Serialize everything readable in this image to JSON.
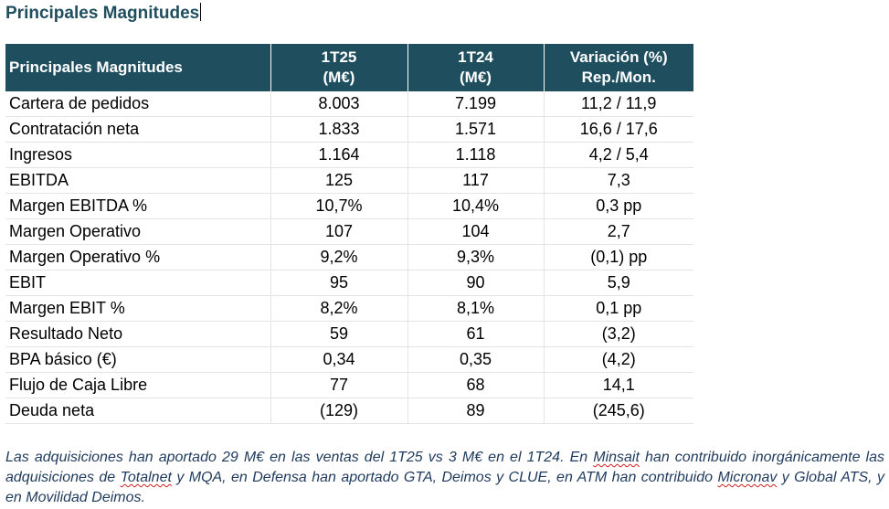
{
  "document": {
    "title": "Principales Magnitudes"
  },
  "table": {
    "headers": {
      "label": "Principales Magnitudes",
      "col1": [
        "1T25",
        "(M€)"
      ],
      "col2": [
        "1T24",
        "(M€)"
      ],
      "col3": [
        "Variación (%)",
        "Rep./Mon."
      ]
    },
    "rows": [
      {
        "label": "Cartera de pedidos",
        "q125": "8.003",
        "q124": "7.199",
        "variation": "11,2 / 11,9"
      },
      {
        "label": "Contratación neta",
        "q125": "1.833",
        "q124": "1.571",
        "variation": "16,6 / 17,6"
      },
      {
        "label": "Ingresos",
        "q125": "1.164",
        "q124": "1.118",
        "variation": "4,2 / 5,4"
      },
      {
        "label": "EBITDA",
        "q125": "125",
        "q124": "117",
        "variation": "7,3"
      },
      {
        "label": "Margen EBITDA %",
        "q125": "10,7%",
        "q124": "10,4%",
        "variation": "0,3 pp"
      },
      {
        "label": "Margen Operativo",
        "q125": "107",
        "q124": "104",
        "variation": "2,7"
      },
      {
        "label": "Margen Operativo %",
        "q125": "9,2%",
        "q124": "9,3%",
        "variation": "(0,1) pp"
      },
      {
        "label": "EBIT",
        "q125": "95",
        "q124": "90",
        "variation": "5,9"
      },
      {
        "label": "Margen EBIT %",
        "q125": "8,2%",
        "q124": "8,1%",
        "variation": "0,1 pp"
      },
      {
        "label": "Resultado Neto",
        "q125": "59",
        "q124": "61",
        "variation": "(3,2)"
      },
      {
        "label": "BPA básico (€)",
        "q125": "0,34",
        "q124": "0,35",
        "variation": "(4,2)"
      },
      {
        "label": "Flujo de Caja Libre",
        "q125": "77",
        "q124": "68",
        "variation": "14,1"
      },
      {
        "label": "Deuda neta",
        "q125": "(129)",
        "q124": "89",
        "variation": "(245,6)"
      }
    ]
  },
  "footnote": {
    "part1": "Las adquisiciones han aportado 29 M€ en las ventas del 1T25 vs 3 M€ en el 1T24. En ",
    "minsait": "Minsait",
    "part2": " han contribuido inorgánicamente las adquisiciones de ",
    "totalnet": "Totalnet",
    "part3": " y MQA, en Defensa han aportado GTA, Deimos y CLUE, en ATM han contribuido ",
    "micronav": "Micronav",
    "part4": " y Global ATS, y en Movilidad Deimos."
  },
  "colors": {
    "header_bg": "#1f4e5f",
    "title_text": "#1f4e5f",
    "footnote_text": "#1f3a5c",
    "spellcheck_underline": "#d02020"
  }
}
